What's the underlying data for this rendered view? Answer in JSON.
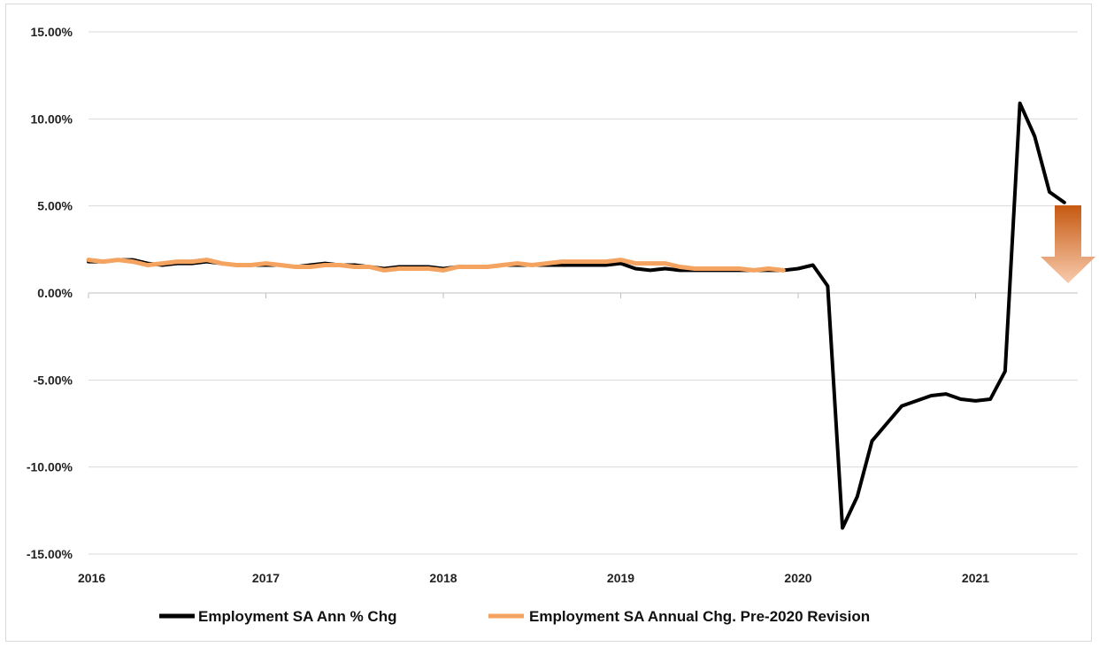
{
  "chart_data": {
    "type": "line",
    "title": "",
    "xlabel": "",
    "ylabel": "",
    "ylim": [
      -15,
      15
    ],
    "xlim": [
      "2016-01",
      "2021-07"
    ],
    "x_tick_labels": [
      "2016",
      "2017",
      "2018",
      "2019",
      "2020",
      "2021"
    ],
    "y_tick_labels": [
      "15.00%",
      "10.00%",
      "5.00%",
      "0.00%",
      "-5.00%",
      "-10.00%",
      "-15.00%"
    ],
    "y_ticks": [
      15,
      10,
      5,
      0,
      -5,
      -10,
      -15
    ],
    "grid": "horizontal",
    "legend_position": "bottom",
    "series": [
      {
        "name": "Employment SA Ann % Chg",
        "color": "#000000",
        "x": [
          "2016-01",
          "2016-02",
          "2016-03",
          "2016-04",
          "2016-05",
          "2016-06",
          "2016-07",
          "2016-08",
          "2016-09",
          "2016-10",
          "2016-11",
          "2016-12",
          "2017-01",
          "2017-02",
          "2017-03",
          "2017-04",
          "2017-05",
          "2017-06",
          "2017-07",
          "2017-08",
          "2017-09",
          "2017-10",
          "2017-11",
          "2017-12",
          "2018-01",
          "2018-02",
          "2018-03",
          "2018-04",
          "2018-05",
          "2018-06",
          "2018-07",
          "2018-08",
          "2018-09",
          "2018-10",
          "2018-11",
          "2018-12",
          "2019-01",
          "2019-02",
          "2019-03",
          "2019-04",
          "2019-05",
          "2019-06",
          "2019-07",
          "2019-08",
          "2019-09",
          "2019-10",
          "2019-11",
          "2019-12",
          "2020-01",
          "2020-02",
          "2020-03",
          "2020-04",
          "2020-05",
          "2020-06",
          "2020-07",
          "2020-08",
          "2020-09",
          "2020-10",
          "2020-11",
          "2020-12",
          "2021-01",
          "2021-02",
          "2021-03",
          "2021-04",
          "2021-05",
          "2021-06",
          "2021-07"
        ],
        "values": [
          1.8,
          1.8,
          1.9,
          1.9,
          1.7,
          1.6,
          1.7,
          1.7,
          1.8,
          1.7,
          1.6,
          1.6,
          1.6,
          1.6,
          1.5,
          1.6,
          1.7,
          1.6,
          1.6,
          1.5,
          1.4,
          1.5,
          1.5,
          1.5,
          1.4,
          1.5,
          1.5,
          1.5,
          1.6,
          1.6,
          1.6,
          1.6,
          1.6,
          1.6,
          1.6,
          1.6,
          1.7,
          1.4,
          1.3,
          1.4,
          1.3,
          1.3,
          1.3,
          1.3,
          1.3,
          1.3,
          1.3,
          1.3,
          1.4,
          1.6,
          0.4,
          -13.5,
          -11.7,
          -8.5,
          -7.5,
          -6.5,
          -6.2,
          -5.9,
          -5.8,
          -6.1,
          -6.2,
          -6.1,
          -4.5,
          10.9,
          9.0,
          5.8,
          5.2
        ]
      },
      {
        "name": "Employment SA Annual Chg. Pre-2020 Revision",
        "color": "#f4a460",
        "x": [
          "2016-01",
          "2016-02",
          "2016-03",
          "2016-04",
          "2016-05",
          "2016-06",
          "2016-07",
          "2016-08",
          "2016-09",
          "2016-10",
          "2016-11",
          "2016-12",
          "2017-01",
          "2017-02",
          "2017-03",
          "2017-04",
          "2017-05",
          "2017-06",
          "2017-07",
          "2017-08",
          "2017-09",
          "2017-10",
          "2017-11",
          "2017-12",
          "2018-01",
          "2018-02",
          "2018-03",
          "2018-04",
          "2018-05",
          "2018-06",
          "2018-07",
          "2018-08",
          "2018-09",
          "2018-10",
          "2018-11",
          "2018-12",
          "2019-01",
          "2019-02",
          "2019-03",
          "2019-04",
          "2019-05",
          "2019-06",
          "2019-07",
          "2019-08",
          "2019-09",
          "2019-10",
          "2019-11",
          "2019-12"
        ],
        "values": [
          1.9,
          1.8,
          1.9,
          1.8,
          1.6,
          1.7,
          1.8,
          1.8,
          1.9,
          1.7,
          1.6,
          1.6,
          1.7,
          1.6,
          1.5,
          1.5,
          1.6,
          1.6,
          1.5,
          1.5,
          1.3,
          1.4,
          1.4,
          1.4,
          1.3,
          1.5,
          1.5,
          1.5,
          1.6,
          1.7,
          1.6,
          1.7,
          1.8,
          1.8,
          1.8,
          1.8,
          1.9,
          1.7,
          1.7,
          1.7,
          1.5,
          1.4,
          1.4,
          1.4,
          1.4,
          1.3,
          1.4,
          1.3
        ]
      }
    ],
    "annotation": {
      "type": "down-arrow",
      "color_top": "#c65911",
      "color_bottom": "#f8cbad"
    }
  }
}
